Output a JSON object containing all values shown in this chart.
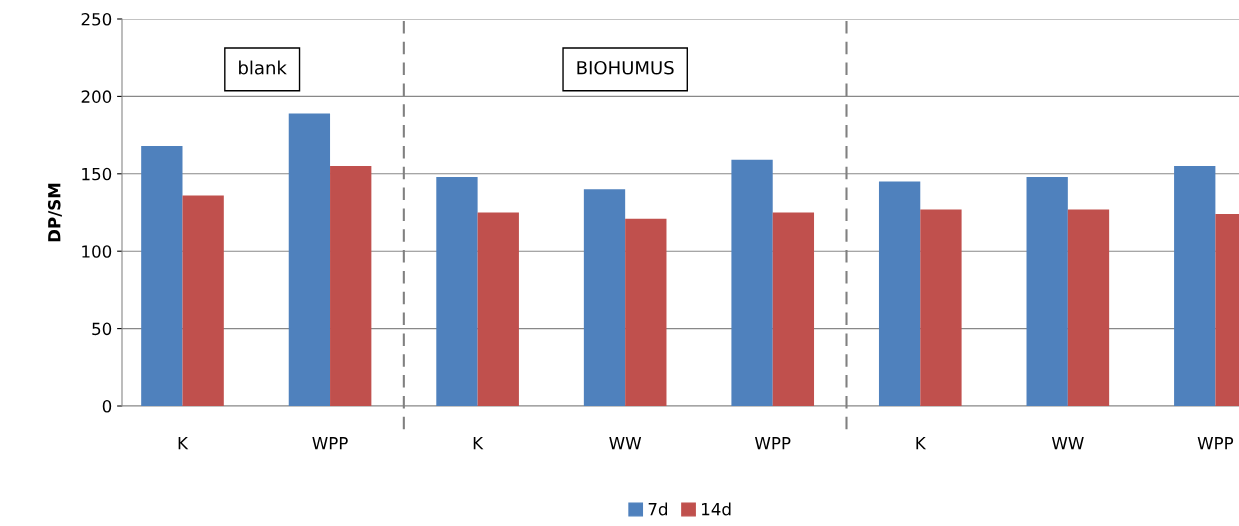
{
  "chart_data": {
    "type": "bar",
    "ylabel": "DP/SM",
    "categories": [
      "K",
      "WPP",
      "K",
      "WW",
      "WPP",
      "K",
      "WW",
      "WPP"
    ],
    "series": [
      {
        "name": "7d",
        "color": "#4f81bd",
        "values": [
          168,
          189,
          148,
          140,
          159,
          145,
          148,
          155
        ]
      },
      {
        "name": "14d",
        "color": "#c0504d",
        "values": [
          136,
          155,
          125,
          121,
          125,
          127,
          127,
          124
        ]
      }
    ],
    "ylim": [
      0,
      250
    ],
    "yticks": [
      0,
      50,
      100,
      150,
      200,
      250
    ],
    "grid": "y",
    "legend": "bottom",
    "annotations": [
      "blank",
      "BIOHUMUS"
    ]
  }
}
